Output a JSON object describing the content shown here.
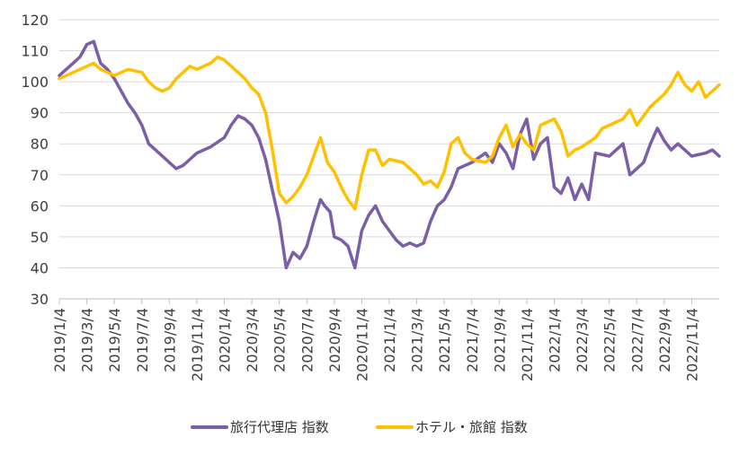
{
  "chart_data": {
    "type": "line",
    "title": "",
    "xlabel": "",
    "ylabel": "",
    "ylim": [
      30,
      120
    ],
    "yticks": [
      30,
      40,
      50,
      60,
      70,
      80,
      90,
      100,
      110,
      120
    ],
    "xticks": [
      "2019/1/4",
      "2019/3/4",
      "2019/5/4",
      "2019/7/4",
      "2019/9/4",
      "2019/11/4",
      "2020/1/4",
      "2020/3/4",
      "2020/5/4",
      "2020/7/4",
      "2020/9/4",
      "2020/11/4",
      "2021/1/4",
      "2021/3/4",
      "2021/5/4",
      "2021/7/4",
      "2021/9/4",
      "2021/11/4",
      "2022/1/4",
      "2022/3/4",
      "2022/5/4",
      "2022/7/4",
      "2022/9/4",
      "2022/11/4"
    ],
    "x_range": [
      0,
      48
    ],
    "legend_position": "bottom",
    "series": [
      {
        "name": "旅行代理店 指数",
        "color": "#7b5ea7",
        "x": [
          0,
          0.5,
          1,
          1.5,
          2,
          2.5,
          3,
          3.5,
          4,
          4.5,
          5,
          5.5,
          6,
          6.5,
          7,
          7.5,
          8,
          8.5,
          9,
          9.5,
          10,
          11,
          12,
          12.5,
          13,
          13.5,
          14,
          14.5,
          15,
          15.5,
          16,
          16.5,
          17,
          17.5,
          18,
          18.5,
          19,
          19.3,
          19.7,
          20,
          20.5,
          21,
          21.5,
          22,
          22.5,
          23,
          23.5,
          24,
          24.5,
          25,
          25.5,
          26,
          26.5,
          27,
          27.5,
          28,
          28.5,
          29,
          30,
          31,
          31.5,
          32,
          32.5,
          33,
          33.5,
          34,
          34.5,
          35,
          35.5,
          36,
          36.5,
          37,
          37.5,
          38,
          38.5,
          39,
          40,
          41,
          41.5,
          42,
          42.5,
          43,
          43.5,
          44,
          44.5,
          45,
          46,
          47,
          47.5,
          48
        ],
        "values": [
          102,
          104,
          106,
          108,
          112,
          113,
          106,
          104,
          101,
          97,
          93,
          90,
          86,
          80,
          78,
          76,
          74,
          72,
          73,
          75,
          77,
          79,
          82,
          86,
          89,
          88,
          86,
          82,
          75,
          65,
          55,
          40,
          45,
          43,
          47,
          55,
          62,
          60,
          58,
          50,
          49,
          47,
          40,
          52,
          57,
          60,
          55,
          52,
          49,
          47,
          48,
          47,
          48,
          55,
          60,
          62,
          66,
          72,
          74,
          77,
          74,
          80,
          77,
          72,
          83,
          88,
          75,
          80,
          82,
          66,
          64,
          69,
          62,
          67,
          62,
          77,
          76,
          80,
          70,
          72,
          74,
          80,
          85,
          81,
          78,
          80,
          76,
          77,
          78,
          76
        ]
      },
      {
        "name": "ホテル・旅館 指数",
        "color": "#ffc000",
        "x": [
          0,
          1,
          1.5,
          2,
          2.5,
          3,
          3.5,
          4,
          4.5,
          5,
          6,
          6.5,
          7,
          7.5,
          8,
          8.5,
          9,
          9.5,
          10,
          11,
          11.5,
          12,
          12.5,
          13,
          13.5,
          14,
          14.5,
          15,
          15.5,
          16,
          16.5,
          17,
          17.5,
          18,
          18.5,
          19,
          19.5,
          20,
          20.5,
          21,
          21.5,
          22,
          22.5,
          23,
          23.5,
          24,
          25,
          26,
          26.5,
          27,
          27.5,
          28,
          28.5,
          29,
          29.5,
          30,
          31,
          31.5,
          32,
          32.5,
          33,
          33.5,
          34,
          34.5,
          35,
          35.5,
          36,
          36.5,
          37,
          37.5,
          38,
          39,
          39.5,
          40,
          41,
          41.5,
          42,
          42.5,
          43,
          43.5,
          44,
          44.5,
          45,
          45.5,
          46,
          46.5,
          47,
          47.5,
          48
        ],
        "values": [
          101,
          103,
          104,
          105,
          106,
          104,
          103,
          102,
          103,
          104,
          103,
          100,
          98,
          97,
          98,
          101,
          103,
          105,
          104,
          106,
          108,
          107,
          105,
          103,
          101,
          98,
          96,
          90,
          78,
          64,
          61,
          63,
          66,
          70,
          76,
          82,
          74,
          71,
          66,
          62,
          59,
          70,
          78,
          78,
          73,
          75,
          74,
          70,
          67,
          68,
          66,
          71,
          80,
          82,
          77,
          75,
          74,
          76,
          82,
          86,
          79,
          83,
          80,
          78,
          86,
          87,
          88,
          84,
          76,
          78,
          79,
          82,
          85,
          86,
          88,
          91,
          86,
          89,
          92,
          94,
          96,
          99,
          103,
          99,
          97,
          100,
          95,
          97,
          99
        ]
      }
    ]
  }
}
